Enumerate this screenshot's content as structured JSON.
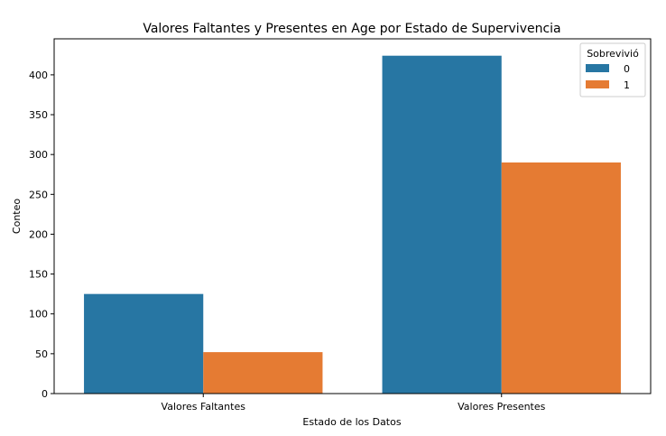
{
  "chart_data": {
    "type": "bar",
    "title": "Valores Faltantes y Presentes en Age por Estado de Supervivencia",
    "xlabel": "Estado de los Datos",
    "ylabel": "Conteo",
    "categories": [
      "Valores Faltantes",
      "Valores Presentes"
    ],
    "series": [
      {
        "name": "0",
        "color": "#2776a3",
        "values": [
          125,
          424
        ]
      },
      {
        "name": "1",
        "color": "#e57b33",
        "values": [
          52,
          290
        ]
      }
    ],
    "ylim": [
      0,
      445.2
    ],
    "yticks": [
      0,
      50,
      100,
      150,
      200,
      250,
      300,
      350,
      400
    ],
    "legend": {
      "title": "Sobrevivió",
      "placement": "top-right"
    },
    "grid": false
  }
}
